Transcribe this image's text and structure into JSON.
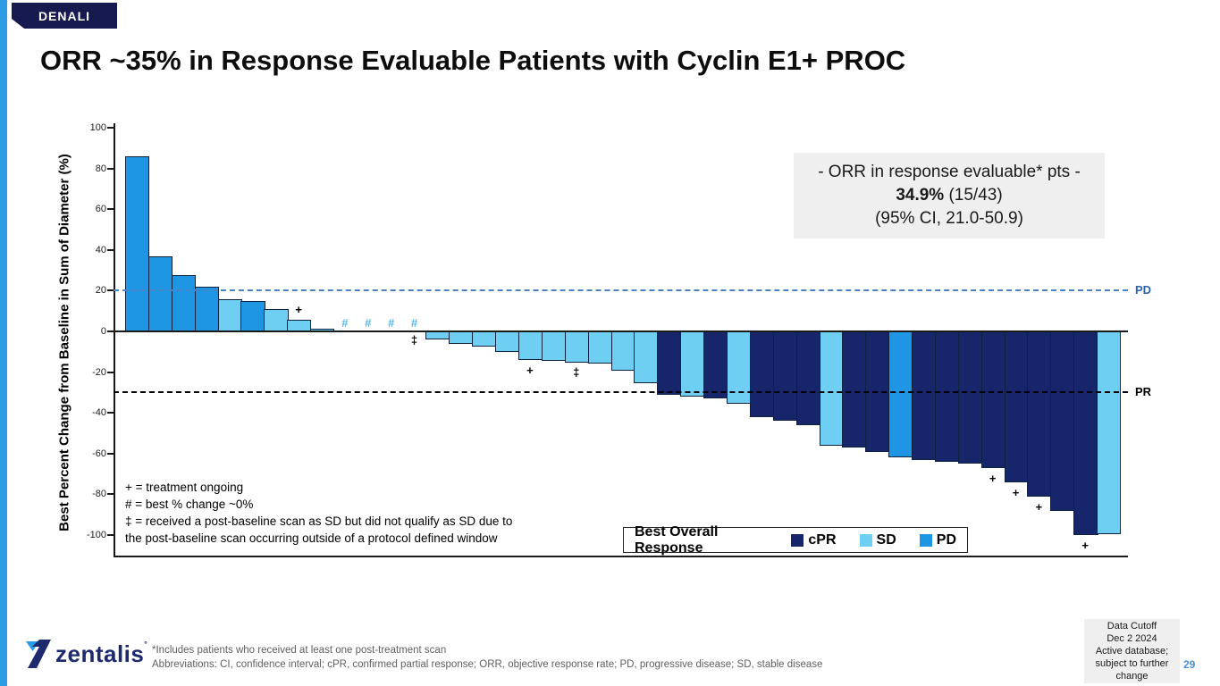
{
  "slide": {
    "badge": "DENALI",
    "title": "ORR ~35% in Response Evaluable Patients with Cyclin E1+ PROC",
    "page_number": "29"
  },
  "orr_box": {
    "line1": "- ORR in response evaluable* pts -",
    "value_bold": "34.9%",
    "value_rest": " (15/43)",
    "line3": "(95% CI, 21.0-50.9)"
  },
  "chart_data": {
    "type": "bar",
    "title": "",
    "xlabel": "",
    "ylabel": "Best Percent Change from Baseline in Sum of Diameter (%)",
    "ylim": [
      -100,
      100
    ],
    "yticks": [
      100,
      80,
      60,
      40,
      20,
      0,
      -20,
      -40,
      -60,
      -80,
      -100
    ],
    "grid": false,
    "reference_lines": [
      {
        "y": 20,
        "label": "PD",
        "line_color": "#4A82C4",
        "label_color": "#2B62AE"
      },
      {
        "y": -30,
        "label": "PR",
        "line_color": "#000000",
        "label_color": "#000000"
      }
    ],
    "legend": {
      "title": "Best Overall Response",
      "position": "bottom-right-inside",
      "entries": [
        {
          "label": "cPR",
          "color": "#17256B"
        },
        {
          "label": "SD",
          "color": "#6FCFF2"
        },
        {
          "label": "PD",
          "color": "#1F96E4"
        }
      ]
    },
    "bars": [
      {
        "value": 86,
        "response": "PD"
      },
      {
        "value": 37,
        "response": "PD"
      },
      {
        "value": 27.5,
        "response": "PD"
      },
      {
        "value": 22,
        "response": "PD"
      },
      {
        "value": 16,
        "response": "SD"
      },
      {
        "value": 15,
        "response": "PD"
      },
      {
        "value": 11,
        "response": "SD"
      },
      {
        "value": 5.5,
        "response": "SD",
        "marker": "plus_above"
      },
      {
        "value": 1.5,
        "response": "SD"
      },
      {
        "value": 0,
        "response": "SD",
        "marker": "hash"
      },
      {
        "value": 0,
        "response": "SD",
        "marker": "hash"
      },
      {
        "value": 0,
        "response": "SD",
        "marker": "hash"
      },
      {
        "value": 0,
        "response": "SD",
        "marker": "hash_dagger"
      },
      {
        "value": -4,
        "response": "SD"
      },
      {
        "value": -6,
        "response": "SD"
      },
      {
        "value": -7.5,
        "response": "SD"
      },
      {
        "value": -10,
        "response": "SD"
      },
      {
        "value": -14,
        "response": "SD",
        "marker": "plus_below"
      },
      {
        "value": -14.5,
        "response": "SD"
      },
      {
        "value": -15.5,
        "response": "SD",
        "marker": "dagger_below"
      },
      {
        "value": -16,
        "response": "SD"
      },
      {
        "value": -19.5,
        "response": "SD"
      },
      {
        "value": -25.5,
        "response": "SD"
      },
      {
        "value": -31,
        "response": "cPR"
      },
      {
        "value": -32,
        "response": "SD"
      },
      {
        "value": -33,
        "response": "cPR"
      },
      {
        "value": -35.5,
        "response": "SD"
      },
      {
        "value": -42,
        "response": "cPR"
      },
      {
        "value": -44,
        "response": "cPR"
      },
      {
        "value": -46,
        "response": "cPR"
      },
      {
        "value": -56,
        "response": "SD"
      },
      {
        "value": -57,
        "response": "cPR"
      },
      {
        "value": -59,
        "response": "cPR"
      },
      {
        "value": -62,
        "response": "PD"
      },
      {
        "value": -63,
        "response": "cPR"
      },
      {
        "value": -64,
        "response": "cPR"
      },
      {
        "value": -65,
        "response": "cPR"
      },
      {
        "value": -67,
        "response": "cPR",
        "marker": "plus_below"
      },
      {
        "value": -74,
        "response": "cPR",
        "marker": "plus_below"
      },
      {
        "value": -81,
        "response": "cPR",
        "marker": "plus_below"
      },
      {
        "value": -88,
        "response": "cPR"
      },
      {
        "value": -100,
        "response": "cPR",
        "marker": "plus_below"
      },
      {
        "value": -99.5,
        "response": "SD"
      }
    ],
    "marker_symbols": {
      "plus": "+",
      "hash": "#",
      "dagger": "‡"
    }
  },
  "symbol_notes": {
    "line1": "+ = treatment ongoing",
    "line2": "# = best % change ~0%",
    "line3": "‡ = received a post-baseline scan as SD but did not qualify as SD due to",
    "line4": "the post-baseline scan occurring outside of a protocol defined window"
  },
  "footer": {
    "logo_text": "zentalis",
    "logo_sup": "˚",
    "footnote1": "*Includes patients who received at least one post-treatment scan",
    "footnote2": "Abbreviations: CI, confidence interval; cPR, confirmed partial response; ORR, objective response rate; PD, progressive disease; SD, stable disease",
    "cutoff_lines": [
      "Data Cutoff",
      "Dec 2 2024",
      "Active database;",
      "subject to further",
      "change"
    ]
  },
  "colors": {
    "cPR": "#17256B",
    "SD": "#6FCFF2",
    "PD": "#1F96E4",
    "bar_border": "#0D2240",
    "hash_marker": "#55B8EA",
    "accent_stripe": "#2E9CE4",
    "badge_bg": "#171A4E",
    "logo_navy": "#1E2A6E",
    "box_bg": "#F0EFEF",
    "page_number": "#4A90D9"
  }
}
